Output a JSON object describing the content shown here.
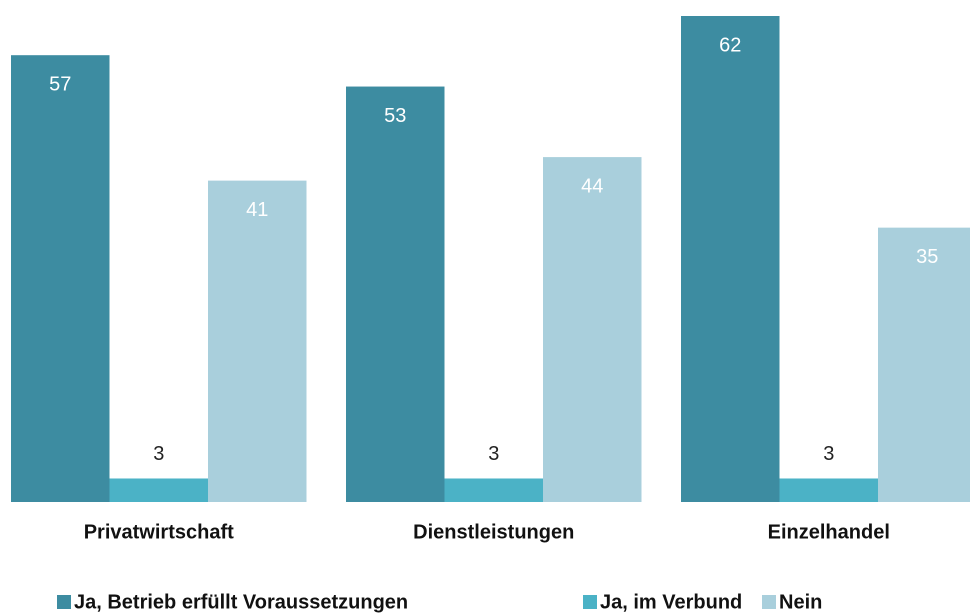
{
  "chart_data": {
    "type": "bar",
    "categories": [
      "Privatwirtschaft",
      "Dienstleistungen",
      "Einzelhandel"
    ],
    "series": [
      {
        "name": "Ja, Betrieb erfüllt Voraussetzungen",
        "color": "#3d8ca1",
        "values": [
          57,
          53,
          62
        ]
      },
      {
        "name": "Ja, im Verbund",
        "color": "#4bb2c6",
        "values": [
          3,
          3,
          3
        ]
      },
      {
        "name": "Nein",
        "color": "#a9cfdc",
        "values": [
          41,
          44,
          35
        ]
      }
    ]
  }
}
